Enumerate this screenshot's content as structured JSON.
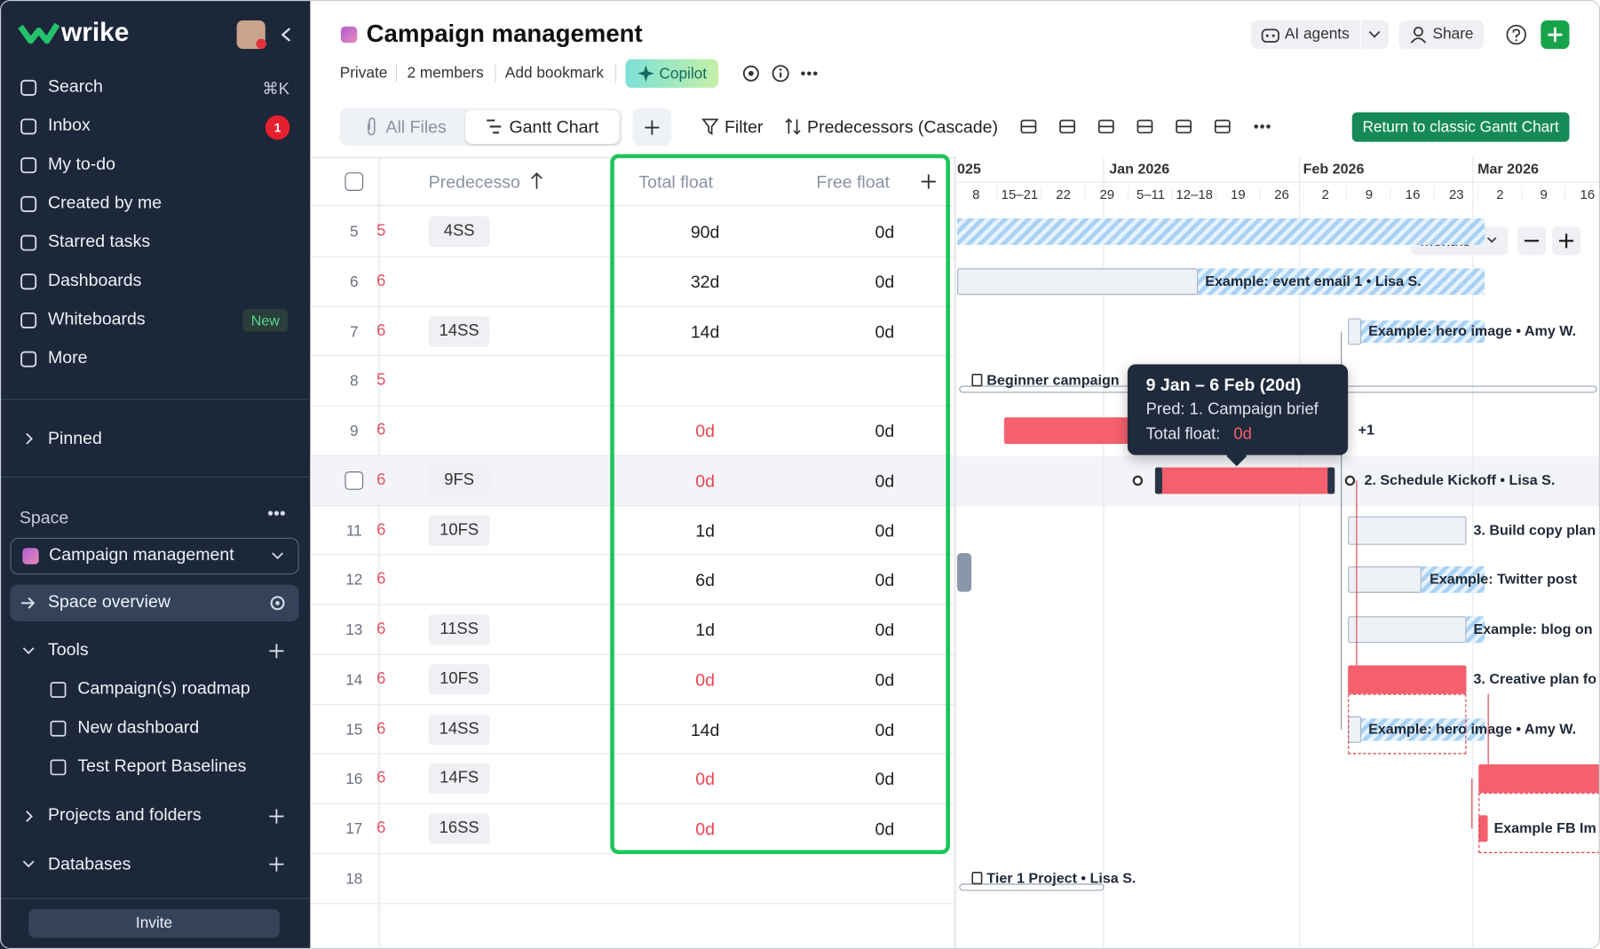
{
  "sidebar": {
    "logo": "wrike",
    "nav": [
      "Search",
      "Inbox",
      "My to-do",
      "Created by me",
      "Starred tasks",
      "Dashboards",
      "Whiteboards",
      "More"
    ],
    "search_shortcut": "⌘K",
    "inbox_badge": "1",
    "whiteboards_tag": "New",
    "pinned": "Pinned",
    "space_label": "Space",
    "space_name": "Campaign management",
    "space_overview": "Space overview",
    "tools": "Tools",
    "tool_items": [
      "Campaign(s) roadmap",
      "New dashboard",
      "Test Report Baselines"
    ],
    "projects": "Projects and folders",
    "databases": "Databases",
    "invite": "Invite"
  },
  "header": {
    "title": "Campaign management",
    "meta": [
      "Private",
      "2 members",
      "Add bookmark"
    ],
    "copilot": "Copilot",
    "ai_agents": "AI agents",
    "share": "Share"
  },
  "toolbar": {
    "tabs": [
      "All Files",
      "Gantt Chart"
    ],
    "filter": "Filter",
    "sort": "Predecessors (Cascade)",
    "return_button": "Return to classic Gantt Chart"
  },
  "table": {
    "columns": [
      "Predecesso",
      "Total float",
      "Free float"
    ],
    "rows": [
      {
        "num": "5",
        "cut": "5",
        "pred": "4SS",
        "total": "90d",
        "free": "0d",
        "critical": false
      },
      {
        "num": "6",
        "cut": "6",
        "total": "32d",
        "free": "0d",
        "critical": false
      },
      {
        "num": "7",
        "cut": "6",
        "pred": "14SS",
        "total": "14d",
        "free": "0d",
        "critical": false
      },
      {
        "num": "8",
        "cut": "5"
      },
      {
        "num": "9",
        "cut": "6",
        "total": "0d",
        "free": "0d",
        "critical": true
      },
      {
        "cut": "6",
        "pred": "9FS",
        "total": "0d",
        "free": "0d",
        "critical": true,
        "selected": true
      },
      {
        "num": "11",
        "cut": "6",
        "pred": "10FS",
        "total": "1d",
        "free": "0d",
        "critical": false
      },
      {
        "num": "12",
        "cut": "6",
        "total": "6d",
        "free": "0d",
        "critical": false
      },
      {
        "num": "13",
        "cut": "6",
        "pred": "11SS",
        "total": "1d",
        "free": "0d",
        "critical": false
      },
      {
        "num": "14",
        "cut": "6",
        "pred": "10FS",
        "total": "0d",
        "free": "0d",
        "critical": true
      },
      {
        "num": "15",
        "cut": "6",
        "pred": "14SS",
        "total": "14d",
        "free": "0d",
        "critical": false
      },
      {
        "num": "16",
        "cut": "6",
        "pred": "14FS",
        "total": "0d",
        "free": "0d",
        "critical": true
      },
      {
        "num": "17",
        "cut": "6",
        "pred": "16SS",
        "total": "0d",
        "free": "0d",
        "critical": true
      },
      {
        "num": "18"
      }
    ]
  },
  "timeline": {
    "months": [
      "025",
      "Jan 2026",
      "Feb 2026",
      "Mar 2026"
    ],
    "weeks": [
      "8",
      "15–21",
      "22",
      "29",
      "5–11",
      "12–18",
      "19",
      "26",
      "2",
      "9",
      "16",
      "23",
      "2",
      "9",
      "16"
    ],
    "zoom": "Months",
    "labels": [
      "Example: event email 1 • Lisa S.",
      "Example: hero image • Amy W.",
      "Beginner campaign",
      "+1",
      "2. Schedule Kickoff • Lisa S.",
      "3. Build copy plan",
      "Example: Twitter post",
      "Example: blog on",
      "3. Creative plan fo",
      "Example: hero image • Amy W.",
      "Example FB Im",
      "Tier 1 Project • Lisa S."
    ]
  },
  "tooltip": {
    "dates": "9 Jan – 6 Feb (20d)",
    "pred": "Pred: 1. Campaign brief",
    "float_label": "Total float:",
    "float_value": "0d"
  }
}
